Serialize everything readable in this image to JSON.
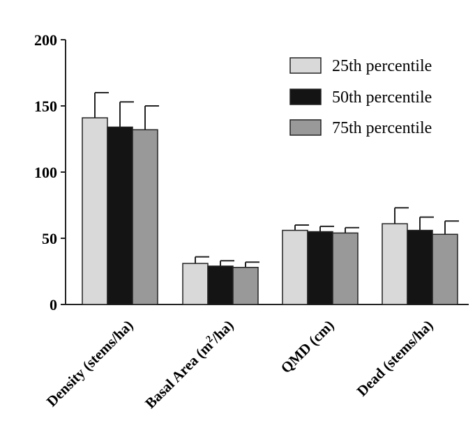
{
  "chart_data": {
    "type": "bar",
    "categories": [
      "Density (stems/ha)",
      "Basal Area (m²/ha)",
      "QMD (cm)",
      "Dead (stems/ha)"
    ],
    "category_labels": [
      {
        "main": "Density (stems/ha)"
      },
      {
        "pre": "Basal Area (m",
        "sup": "2",
        "post": "/ha)"
      },
      {
        "main": "QMD (cm)"
      },
      {
        "main": "Dead (stems/ha)"
      }
    ],
    "series": [
      {
        "name": "25th percentile",
        "color": "#d9d9d9",
        "values": [
          141,
          31,
          56,
          61
        ],
        "errors": [
          19,
          5,
          4,
          12
        ]
      },
      {
        "name": "50th percentile",
        "color": "#141414",
        "values": [
          134,
          29,
          55,
          56
        ],
        "errors": [
          19,
          4,
          4,
          10
        ]
      },
      {
        "name": "75th percentile",
        "color": "#999999",
        "values": [
          132,
          28,
          54,
          53
        ],
        "errors": [
          18,
          4,
          4,
          10
        ]
      }
    ],
    "ylim": [
      0,
      200
    ],
    "yticks": [
      0,
      50,
      100,
      150,
      200
    ],
    "ytick_labels": [
      "0",
      "50",
      "100",
      "150",
      "200"
    ],
    "legend_position": "top-right",
    "grid": false
  }
}
